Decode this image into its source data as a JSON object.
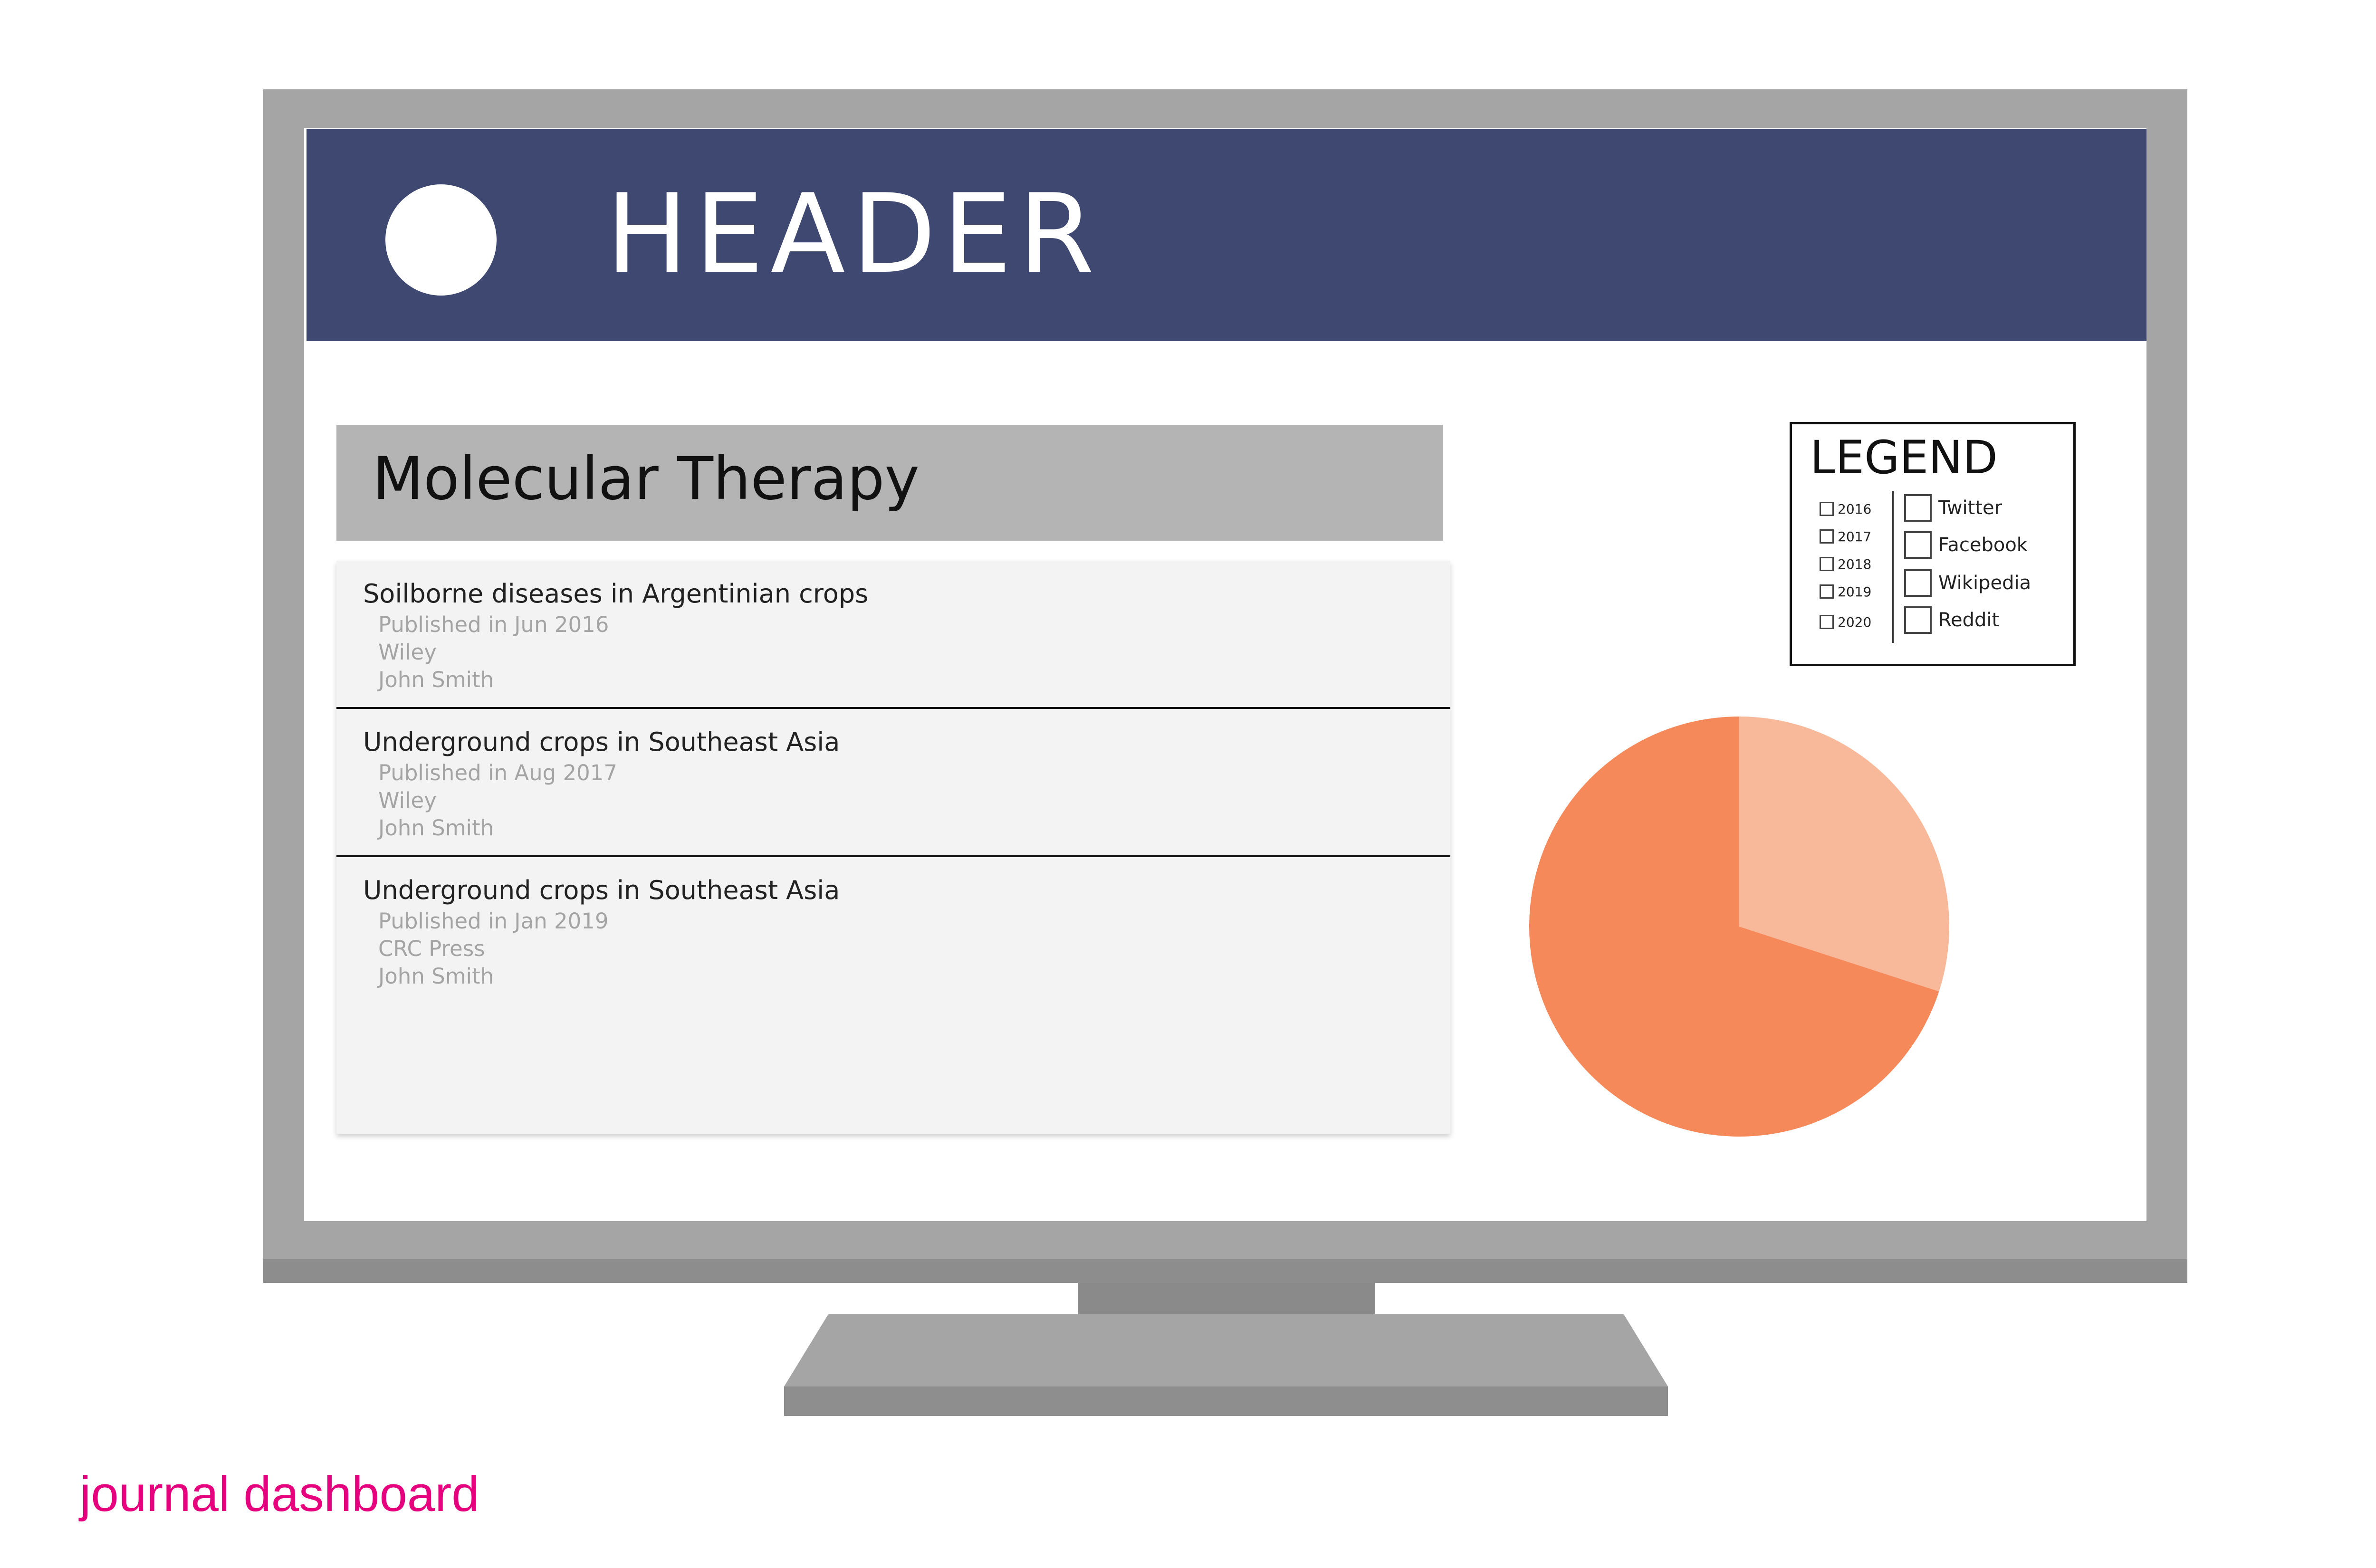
{
  "header": {
    "title": "HEADER"
  },
  "journal": {
    "title": "Molecular Therapy"
  },
  "articles": [
    {
      "title": "Soilborne diseases in Argentinian crops",
      "published": "Published in Jun 2016",
      "publisher": "Wiley",
      "author": "John Smith"
    },
    {
      "title": "Underground crops in Southeast Asia",
      "published": "Published in Aug 2017",
      "publisher": "Wiley",
      "author": "John Smith"
    },
    {
      "title": "Underground crops in Southeast Asia",
      "published": "Published in Jan 2019",
      "publisher": "CRC Press",
      "author": "John Smith"
    }
  ],
  "legend": {
    "title": "LEGEND",
    "years": [
      "2016",
      "2017",
      "2018",
      "2019",
      "2020"
    ],
    "sources": [
      "Twitter",
      "Facebook",
      "Wikipedia",
      "Reddit"
    ]
  },
  "caption": "journal dashboard",
  "colors": {
    "header_bg": "#3e4870",
    "pie_light": "#f8b89a",
    "pie_dark": "#f5895a",
    "caption": "#e6007e"
  },
  "chart_data": {
    "type": "pie",
    "values": [
      0.3,
      0.7
    ],
    "colors": [
      "#f8b89a",
      "#f5895a"
    ],
    "start_angle_deg": 0
  }
}
